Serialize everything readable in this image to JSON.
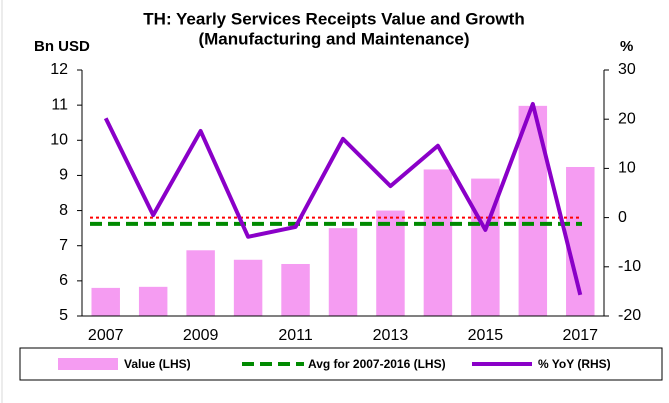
{
  "chart_data": {
    "type": "bar",
    "title": [
      "TH: Yearly Services Receipts Value and Growth",
      "(Manufacturing and Maintenance)"
    ],
    "y_label": "Bn USD",
    "y2_label": "%",
    "categories": [
      "2007",
      null,
      "2009",
      null,
      "2011",
      null,
      "2013",
      null,
      "2015",
      null,
      "2017"
    ],
    "series": [
      {
        "name": "Value (LHS)",
        "type": "bar",
        "color": "#f59cf2",
        "values": [
          5.8,
          5.83,
          6.87,
          6.6,
          6.48,
          7.5,
          8.0,
          9.17,
          8.91,
          10.98,
          9.24
        ]
      },
      {
        "name": "Avg for 2007-2016 (LHS)",
        "type": "hline",
        "color": "#008a00",
        "value": 7.62
      },
      {
        "name": "% YoY (RHS)",
        "type": "line",
        "axis": "y2",
        "color": "#8a00c8",
        "values": [
          20.2,
          0.5,
          17.6,
          -3.9,
          -1.9,
          16.0,
          6.4,
          14.6,
          -2.5,
          23.1,
          -15.7
        ]
      }
    ],
    "reference_lines": [
      {
        "value": 7.8,
        "color": "#ff0000"
      }
    ],
    "ylim": [
      5,
      12
    ],
    "yticks": [
      5,
      6,
      7,
      8,
      9,
      10,
      11,
      12
    ],
    "y2lim": [
      -20,
      30
    ],
    "y2ticks": [
      -20,
      -10,
      0,
      10,
      20,
      30
    ]
  }
}
